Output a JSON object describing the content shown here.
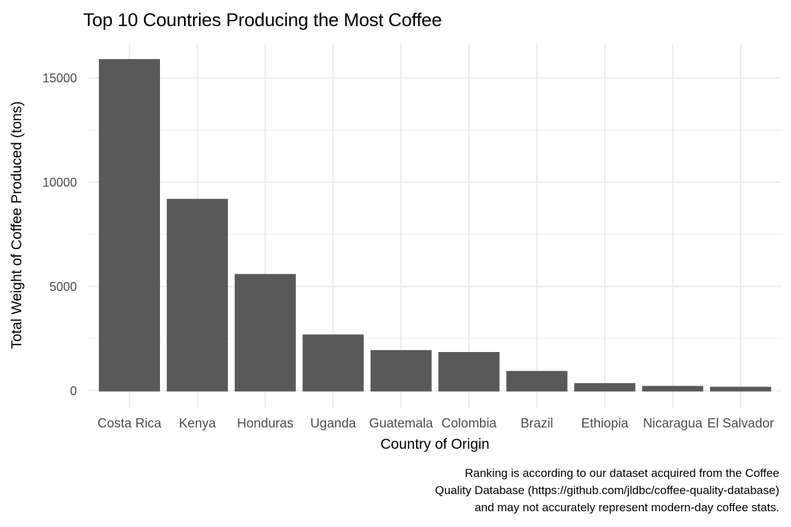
{
  "chart_data": {
    "type": "bar",
    "title": "Top 10 Countries Producing the Most Coffee",
    "xlabel": "Country of Origin",
    "ylabel": "Total Weight of Coffee Produced (tons)",
    "categories": [
      "Costa Rica",
      "Kenya",
      "Honduras",
      "Uganda",
      "Guatemala",
      "Colombia",
      "Brazil",
      "Ethiopia",
      "Nicaragua",
      "El Salvador"
    ],
    "values": [
      15900,
      9200,
      5600,
      2700,
      1950,
      1860,
      950,
      370,
      235,
      195
    ],
    "yticks": [
      0,
      5000,
      10000,
      15000
    ],
    "ytick_labels": [
      "0",
      "5000",
      "10000",
      "15000"
    ],
    "minor_gridlines": [
      2500,
      7500,
      12500
    ],
    "ylim": [
      0,
      16700
    ],
    "grid": "major and minor horizontal, major vertical per category",
    "legend": false,
    "caption_lines": [
      "Ranking is according to our dataset acquired from the Coffee",
      "Quality Database (https://github.com/jldbc/coffee-quality-database)",
      "and may not accurately represent modern-day coffee stats."
    ],
    "colors": {
      "bar": "#595959",
      "grid_major": "#ebebeb",
      "grid_minor": "#f0f0f0",
      "axis_text": "#4d4d4d",
      "text": "#000000",
      "background": "#ffffff"
    }
  }
}
